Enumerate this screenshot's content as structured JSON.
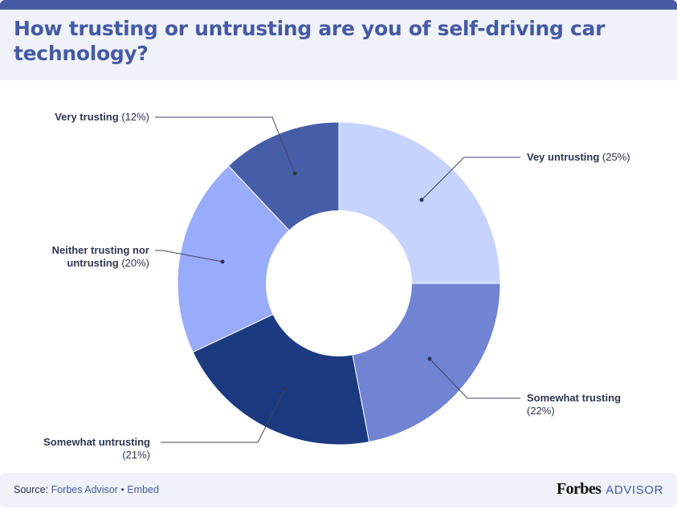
{
  "header": {
    "title": "How trusting or untrusting are you of self-driving car technology?",
    "accent_color": "#4659a5",
    "background_color": "#eff2f8"
  },
  "chart_data": {
    "type": "pie",
    "subtype": "donut",
    "title": "How trusting or untrusting are you of self-driving car technology?",
    "categories": [
      "Vey untrusting",
      "Somewhat trusting",
      "Somewhat untrusting",
      "Neither trusting nor untrusting",
      "Very trusting"
    ],
    "values": [
      25,
      22,
      21,
      20,
      12
    ],
    "unit": "%",
    "colors": [
      "#c5d3fd",
      "#7183d3",
      "#1b3a80",
      "#99acfb",
      "#465ea8"
    ],
    "start_angle_deg": 0,
    "direction": "clockwise",
    "legend": "none (callout labels)"
  },
  "labels": [
    {
      "name": "Vey untrusting",
      "pct": "(25%)"
    },
    {
      "name": "Somewhat trusting",
      "pct": "(22%)"
    },
    {
      "name": "Somewhat untrusting",
      "pct": "(21%)"
    },
    {
      "name_line1": "Neither trusting nor",
      "name_line2": "untrusting",
      "pct": "(20%)"
    },
    {
      "name": "Very trusting",
      "pct": "(12%)"
    }
  ],
  "footer": {
    "source_label": "Source:",
    "source_link": "Forbes Advisor",
    "separator": "•",
    "embed_link": "Embed",
    "brand_name": "Forbes",
    "brand_suffix": "ADVISOR"
  }
}
